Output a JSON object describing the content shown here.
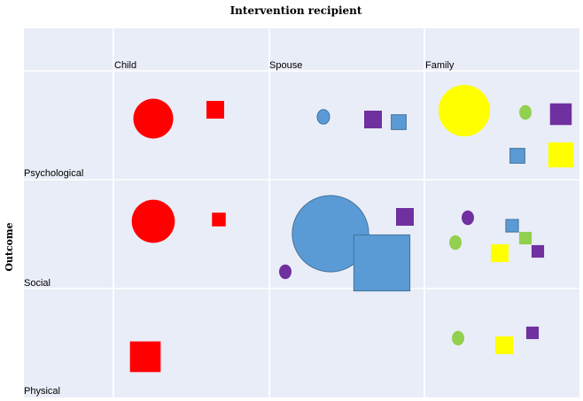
{
  "chart_data": {
    "type": "scatter",
    "title": "Intervention recipient",
    "xlabel": "",
    "ylabel": "Outcome",
    "columns": [
      "Child",
      "Spouse",
      "Family"
    ],
    "rows": [
      "Psychological",
      "Social",
      "Physical"
    ],
    "grid": true,
    "legend": "none",
    "colors": {
      "red": "#ff0000",
      "blue": "#5b9bd5",
      "purple": "#7030a0",
      "yellow": "#ffff00",
      "green": "#92d050"
    },
    "marks": [
      {
        "column": "Child",
        "row": "Psychological",
        "shape": "circle",
        "color": "red",
        "size": 3
      },
      {
        "column": "Child",
        "row": "Psychological",
        "shape": "square",
        "color": "red",
        "size": 1
      },
      {
        "column": "Spouse",
        "row": "Psychological",
        "shape": "circle",
        "color": "blue",
        "size": 0.4
      },
      {
        "column": "Spouse",
        "row": "Psychological",
        "shape": "square",
        "color": "purple",
        "size": 1
      },
      {
        "column": "Spouse",
        "row": "Psychological",
        "shape": "square",
        "color": "blue",
        "size": 0.7
      },
      {
        "column": "Family",
        "row": "Psychological",
        "shape": "circle",
        "color": "yellow",
        "size": 5
      },
      {
        "column": "Family",
        "row": "Psychological",
        "shape": "circle",
        "color": "green",
        "size": 0.4
      },
      {
        "column": "Family",
        "row": "Psychological",
        "shape": "square",
        "color": "purple",
        "size": 1.5
      },
      {
        "column": "Family",
        "row": "Psychological",
        "shape": "square",
        "color": "blue",
        "size": 0.7
      },
      {
        "column": "Family",
        "row": "Psychological",
        "shape": "square",
        "color": "yellow",
        "size": 2
      },
      {
        "column": "Child",
        "row": "Social",
        "shape": "circle",
        "color": "red",
        "size": 3.5
      },
      {
        "column": "Child",
        "row": "Social",
        "shape": "square",
        "color": "red",
        "size": 0.6
      },
      {
        "column": "Spouse",
        "row": "Social",
        "shape": "circle",
        "color": "blue",
        "size": 11
      },
      {
        "column": "Spouse",
        "row": "Social",
        "shape": "square",
        "color": "blue",
        "size": 10
      },
      {
        "column": "Spouse",
        "row": "Social",
        "shape": "square",
        "color": "purple",
        "size": 1
      },
      {
        "column": "Spouse",
        "row": "Social",
        "shape": "circle",
        "color": "purple",
        "size": 0.4
      },
      {
        "column": "Family",
        "row": "Social",
        "shape": "circle",
        "color": "purple",
        "size": 0.4
      },
      {
        "column": "Family",
        "row": "Social",
        "shape": "circle",
        "color": "green",
        "size": 0.4
      },
      {
        "column": "Family",
        "row": "Social",
        "shape": "square",
        "color": "blue",
        "size": 0.5
      },
      {
        "column": "Family",
        "row": "Social",
        "shape": "square",
        "color": "green",
        "size": 0.5
      },
      {
        "column": "Family",
        "row": "Social",
        "shape": "square",
        "color": "yellow",
        "size": 1
      },
      {
        "column": "Family",
        "row": "Social",
        "shape": "square",
        "color": "purple",
        "size": 0.5
      },
      {
        "column": "Child",
        "row": "Physical",
        "shape": "square",
        "color": "red",
        "size": 3
      },
      {
        "column": "Family",
        "row": "Physical",
        "shape": "circle",
        "color": "green",
        "size": 0.4
      },
      {
        "column": "Family",
        "row": "Physical",
        "shape": "square",
        "color": "yellow",
        "size": 1
      },
      {
        "column": "Family",
        "row": "Physical",
        "shape": "square",
        "color": "purple",
        "size": 0.5
      }
    ]
  }
}
